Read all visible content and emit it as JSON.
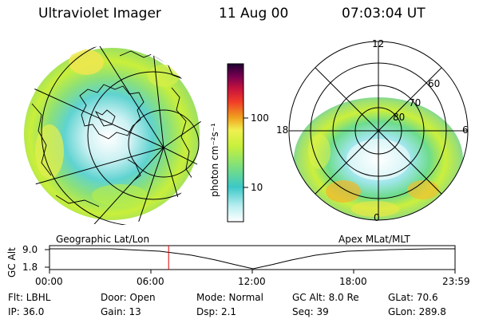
{
  "header": {
    "title": "Ultraviolet Imager",
    "date": "11 Aug 00",
    "time": "07:03:04 UT"
  },
  "colorbar": {
    "label": "photon cm⁻²s⁻¹",
    "ticks": [
      "100",
      "10"
    ],
    "colors": [
      "#ffffff",
      "#b8eef0",
      "#3cc8c8",
      "#7de07d",
      "#c8f03c",
      "#f0f050",
      "#f0a01e",
      "#f03c28",
      "#c8143c",
      "#780050",
      "#1e0032"
    ]
  },
  "left_map": {
    "caption": "Geographic Lat/Lon"
  },
  "right_map": {
    "caption": "Apex MLat/MLT",
    "mlt_labels": {
      "top": "12",
      "left": "18",
      "right": "6",
      "bottom": "0"
    },
    "lat_labels": [
      "60",
      "70",
      "80"
    ]
  },
  "timeline": {
    "axis_label": "GC Alt",
    "y_ticks": [
      "9.0",
      "1.8"
    ],
    "x_ticks": [
      "00:00",
      "06:00",
      "12:00",
      "18:00",
      "23:59"
    ],
    "marker_hour": 7.05
  },
  "info": {
    "flt": "Flt: LBHL",
    "ip": "IP: 36.0",
    "door": "Door: Open",
    "gain": "Gain: 13",
    "mode": "Mode: Normal",
    "dsp": "Dsp:     2.1",
    "gcalt": "GC Alt: 8.0 Re",
    "seq": "Seq: 39",
    "glat": "GLat:   70.6",
    "glon": "GLon: 289.8"
  }
}
